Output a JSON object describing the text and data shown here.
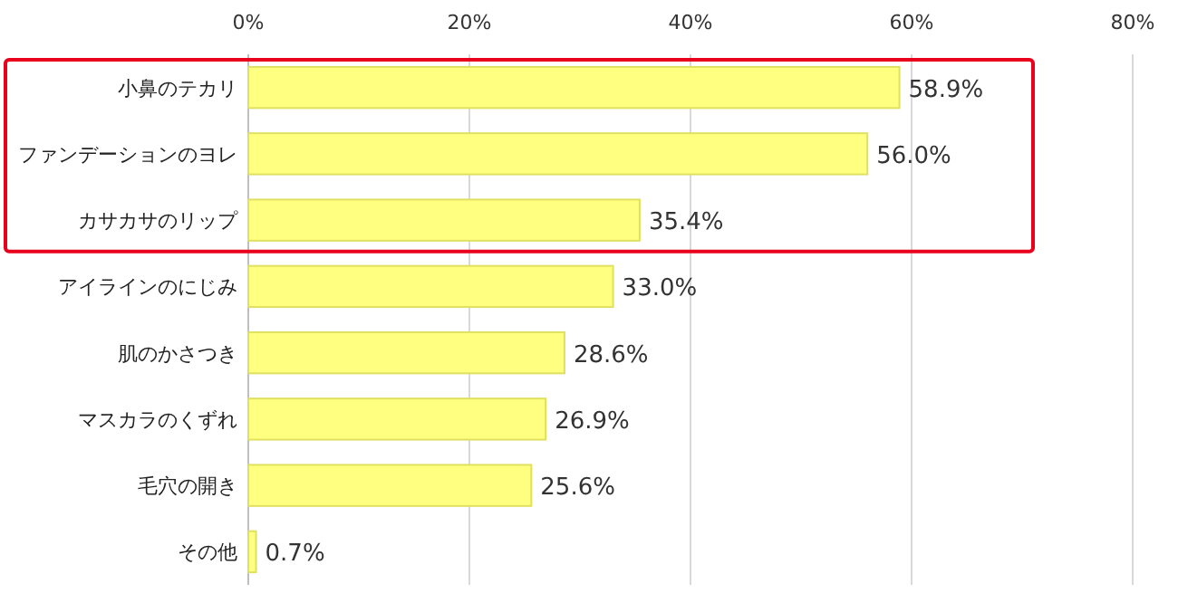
{
  "chart_data": {
    "type": "bar",
    "orientation": "horizontal",
    "categories": [
      "小鼻のテカリ",
      "ファンデーションのヨレ",
      "カサカサのリップ",
      "アイラインのにじみ",
      "肌のかさつき",
      "マスカラのくずれ",
      "毛穴の開き",
      "その他"
    ],
    "values": [
      58.9,
      56.0,
      35.4,
      33.0,
      28.6,
      26.9,
      25.6,
      0.7
    ],
    "value_labels": [
      "58.9%",
      "56.0%",
      "35.4%",
      "33.0%",
      "28.6%",
      "26.9%",
      "25.6%",
      "0.7%"
    ],
    "color": "#ffff80",
    "xlim": [
      0,
      80
    ],
    "xticks": [
      {
        "value": 0,
        "label": "0%"
      },
      {
        "value": 20,
        "label": "20%"
      },
      {
        "value": 40,
        "label": "40%"
      },
      {
        "value": 60,
        "label": "60%"
      },
      {
        "value": 80,
        "label": "80%"
      }
    ],
    "grid": "x"
  }
}
